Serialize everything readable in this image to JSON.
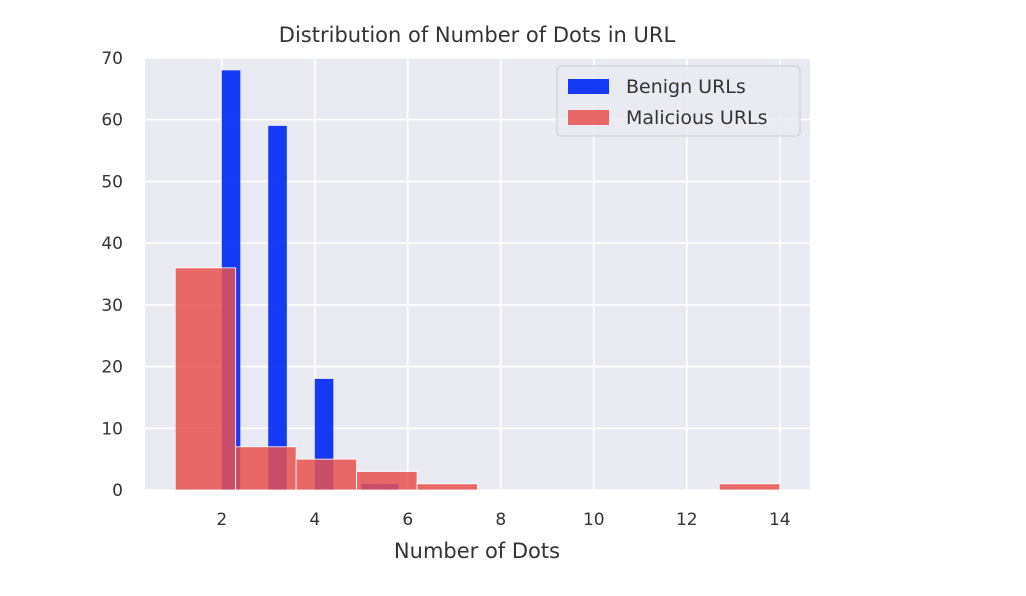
{
  "chart_data": {
    "type": "bar",
    "title": "Distribution of Number of Dots in URL",
    "xlabel": "Number of Dots",
    "ylabel": "",
    "xlim": [
      0.35,
      14.65
    ],
    "ylim": [
      0,
      70
    ],
    "xticks": [
      2,
      4,
      6,
      8,
      10,
      12,
      14
    ],
    "yticks": [
      0,
      10,
      20,
      30,
      40,
      50,
      60,
      70
    ],
    "grid": true,
    "legend_position": "top-right",
    "series": [
      {
        "name": "Benign URLs",
        "color": "#0b2ff5",
        "bars": [
          {
            "x0": 2.0,
            "x1": 2.4,
            "value": 68
          },
          {
            "x0": 3.0,
            "x1": 3.4,
            "value": 59
          },
          {
            "x0": 4.0,
            "x1": 4.4,
            "value": 18
          },
          {
            "x0": 5.0,
            "x1": 5.4,
            "value": 1
          },
          {
            "x0": 5.4,
            "x1": 5.8,
            "value": 1
          }
        ]
      },
      {
        "name": "Malicious URLs",
        "color": "#e8514f",
        "bars": [
          {
            "x0": 1.0,
            "x1": 2.3,
            "value": 36
          },
          {
            "x0": 2.3,
            "x1": 3.6,
            "value": 7
          },
          {
            "x0": 3.6,
            "x1": 4.9,
            "value": 5
          },
          {
            "x0": 4.9,
            "x1": 6.2,
            "value": 3
          },
          {
            "x0": 6.2,
            "x1": 7.5,
            "value": 1
          },
          {
            "x0": 12.7,
            "x1": 14.0,
            "value": 1
          }
        ]
      }
    ]
  }
}
